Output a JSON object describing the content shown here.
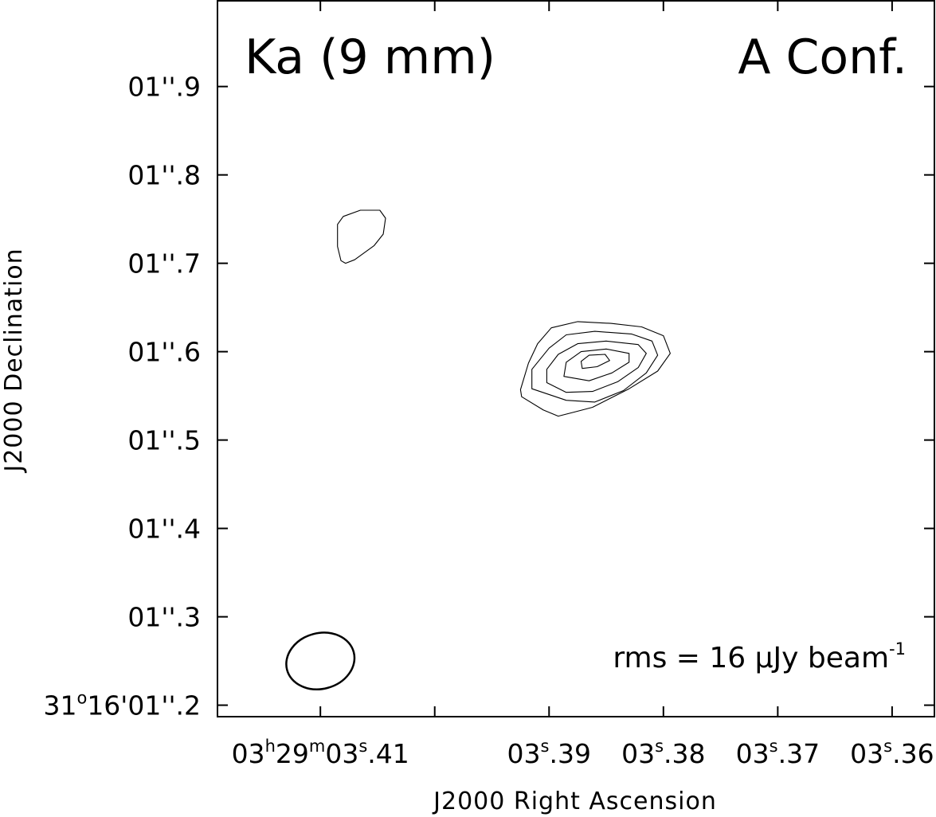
{
  "chart_data": {
    "type": "contour",
    "panel_label": "Ka (9 mm)",
    "configuration_label": "A Conf.",
    "rms_label": {
      "prefix": "rms = 16 μJy beam",
      "superscript": "-1"
    },
    "xlabel": "J2000 Right Ascension",
    "ylabel": "J2000 Declination",
    "xlim_seconds": [
      3.419,
      3.3563
    ],
    "ylim_arcsec": [
      1.187,
      1.997
    ],
    "x_ticks": [
      {
        "value": 3.41,
        "parts": [
          [
            "03",
            ""
          ],
          [
            "h",
            "sup"
          ],
          [
            "29",
            ""
          ],
          [
            "m",
            "sup"
          ],
          [
            "03",
            ""
          ],
          [
            "s",
            "sup"
          ],
          [
            ".41",
            ""
          ]
        ]
      },
      {
        "value": 3.4,
        "parts": []
      },
      {
        "value": 3.39,
        "parts": [
          [
            "03",
            ""
          ],
          [
            "s",
            "sup"
          ],
          [
            ".39",
            ""
          ]
        ]
      },
      {
        "value": 3.38,
        "parts": [
          [
            "03",
            ""
          ],
          [
            "s",
            "sup"
          ],
          [
            ".38",
            ""
          ]
        ]
      },
      {
        "value": 3.37,
        "parts": [
          [
            "03",
            ""
          ],
          [
            "s",
            "sup"
          ],
          [
            ".37",
            ""
          ]
        ]
      },
      {
        "value": 3.36,
        "parts": [
          [
            "03",
            ""
          ],
          [
            "s",
            "sup"
          ],
          [
            ".36",
            ""
          ]
        ]
      }
    ],
    "y_ticks": [
      {
        "value": 1.2,
        "parts": [
          [
            "31",
            ""
          ],
          [
            "o",
            "sup"
          ],
          [
            "16'01''.2",
            ""
          ]
        ]
      },
      {
        "value": 1.3,
        "parts": [
          [
            "01''.3",
            ""
          ]
        ]
      },
      {
        "value": 1.4,
        "parts": [
          [
            "01''.4",
            ""
          ]
        ]
      },
      {
        "value": 1.5,
        "parts": [
          [
            "01''.5",
            ""
          ]
        ]
      },
      {
        "value": 1.6,
        "parts": [
          [
            "01''.6",
            ""
          ]
        ]
      },
      {
        "value": 1.7,
        "parts": [
          [
            "01''.7",
            ""
          ]
        ]
      },
      {
        "value": 1.8,
        "parts": [
          [
            "01''.8",
            ""
          ]
        ]
      },
      {
        "value": 1.9,
        "parts": [
          [
            "01''.9",
            ""
          ]
        ]
      }
    ],
    "contours": [
      {
        "name": "secondary-blob",
        "points": [
          [
            3.4085,
            1.719
          ],
          [
            3.4082,
            1.703
          ],
          [
            3.4078,
            1.7
          ],
          [
            3.407,
            1.704
          ],
          [
            3.4053,
            1.72
          ],
          [
            3.4045,
            1.733
          ],
          [
            3.4043,
            1.751
          ],
          [
            3.4048,
            1.76
          ],
          [
            3.4065,
            1.76
          ],
          [
            3.408,
            1.753
          ],
          [
            3.4085,
            1.744
          ],
          [
            3.4085,
            1.73
          ]
        ]
      },
      {
        "name": "level-1",
        "points": [
          [
            3.3925,
            1.557
          ],
          [
            3.3924,
            1.549
          ],
          [
            3.3905,
            1.534
          ],
          [
            3.3892,
            1.527
          ],
          [
            3.3877,
            1.532
          ],
          [
            3.3862,
            1.537
          ],
          [
            3.383,
            1.558
          ],
          [
            3.3805,
            1.578
          ],
          [
            3.3794,
            1.598
          ],
          [
            3.38,
            1.618
          ],
          [
            3.3819,
            1.628
          ],
          [
            3.3846,
            1.632
          ],
          [
            3.3875,
            1.634
          ],
          [
            3.3898,
            1.627
          ],
          [
            3.391,
            1.609
          ],
          [
            3.3918,
            1.587
          ]
        ]
      },
      {
        "name": "level-2",
        "points": [
          [
            3.3915,
            1.558
          ],
          [
            3.3885,
            1.545
          ],
          [
            3.386,
            1.543
          ],
          [
            3.3835,
            1.556
          ],
          [
            3.3815,
            1.576
          ],
          [
            3.3805,
            1.596
          ],
          [
            3.381,
            1.612
          ],
          [
            3.3828,
            1.62
          ],
          [
            3.386,
            1.623
          ],
          [
            3.3885,
            1.619
          ],
          [
            3.39,
            1.604
          ],
          [
            3.3915,
            1.58
          ]
        ]
      },
      {
        "name": "level-3",
        "points": [
          [
            3.3902,
            1.565
          ],
          [
            3.3885,
            1.554
          ],
          [
            3.3862,
            1.555
          ],
          [
            3.384,
            1.566
          ],
          [
            3.3822,
            1.582
          ],
          [
            3.3815,
            1.598
          ],
          [
            3.3822,
            1.608
          ],
          [
            3.385,
            1.612
          ],
          [
            3.3875,
            1.609
          ],
          [
            3.3892,
            1.597
          ],
          [
            3.3902,
            1.58
          ]
        ]
      },
      {
        "name": "level-4",
        "points": [
          [
            3.3887,
            1.572
          ],
          [
            3.3865,
            1.567
          ],
          [
            3.3845,
            1.576
          ],
          [
            3.383,
            1.588
          ],
          [
            3.383,
            1.598
          ],
          [
            3.385,
            1.603
          ],
          [
            3.3872,
            1.6
          ],
          [
            3.3885,
            1.588
          ]
        ]
      },
      {
        "name": "peak",
        "points": [
          [
            3.3871,
            1.581
          ],
          [
            3.3858,
            1.583
          ],
          [
            3.3847,
            1.59
          ],
          [
            3.3851,
            1.597
          ],
          [
            3.3865,
            1.596
          ],
          [
            3.3872,
            1.589
          ]
        ]
      }
    ],
    "beam": {
      "center": [
        3.41,
        1.25
      ],
      "major_arcsec": 0.078,
      "minor_arcsec": 0.063,
      "angle_deg": -15
    }
  }
}
